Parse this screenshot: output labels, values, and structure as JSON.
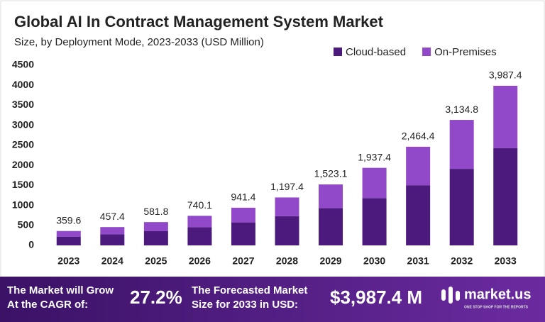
{
  "chart_data": {
    "type": "stacked-bar",
    "title": "Global AI In Contract Management System Market",
    "subtitle": "Size, by Deployment Mode, 2023-2033 (USD Million)",
    "categories": [
      "2023",
      "2024",
      "2025",
      "2026",
      "2027",
      "2028",
      "2029",
      "2030",
      "2031",
      "2032",
      "2033"
    ],
    "series": [
      {
        "name": "Cloud-based",
        "color": "#4b1a7c",
        "values": [
          219,
          279,
          355,
          451,
          574,
          730,
          929,
          1182,
          1503,
          1912,
          2432
        ]
      },
      {
        "name": "On-Premises",
        "color": "#9149c9",
        "values": [
          140.6,
          178.4,
          226.8,
          289.1,
          367.4,
          467.4,
          594.1,
          755.4,
          961.4,
          1222.8,
          1555.4
        ]
      }
    ],
    "totals": [
      359.6,
      457.4,
      581.8,
      740.1,
      941.4,
      1197.4,
      1523.1,
      1937.4,
      2464.4,
      3134.8,
      3987.4
    ],
    "total_labels": [
      "359.6",
      "457.4",
      "581.8",
      "740.1",
      "941.4",
      "1,197.4",
      "1,523.1",
      "1,937.4",
      "2,464.4",
      "3,134.8",
      "3,987.4"
    ],
    "ylim": [
      0,
      4500
    ],
    "yticks": [
      0,
      500,
      1000,
      1500,
      2000,
      2500,
      3000,
      3500,
      4000,
      4500
    ],
    "grid": false,
    "legend": "top-right"
  },
  "footer": {
    "cagr_text": [
      "The Market will Grow",
      "At the CAGR of:"
    ],
    "cagr_value": "27.2%",
    "forecast_text": [
      "The Forecasted Market",
      "Size for 2033 in USD:"
    ],
    "forecast_value": "$3,987.4 M",
    "brand": "market.us",
    "tagline": "ONE STOP SHOP FOR THE REPORTS"
  }
}
